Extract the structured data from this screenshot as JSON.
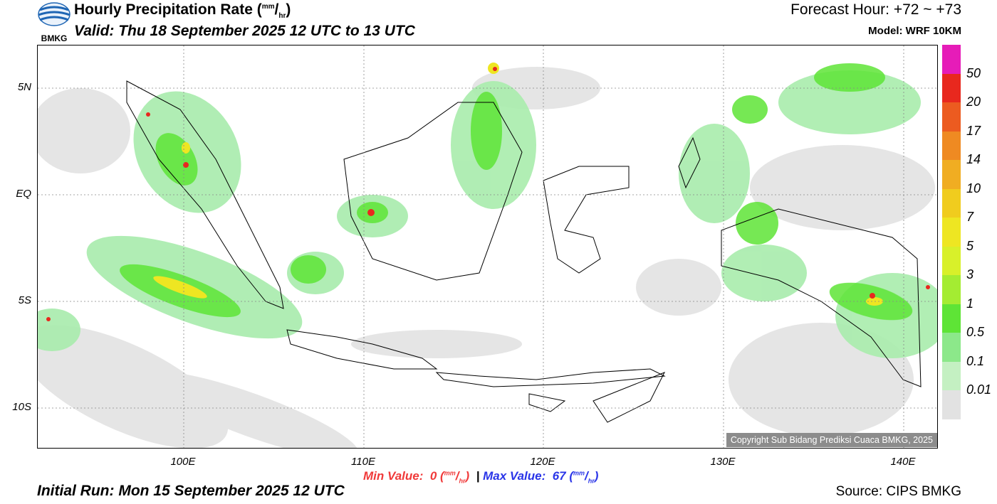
{
  "header": {
    "title": "Hourly Precipitation Rate",
    "title_unit_top": "mm",
    "title_unit_bottom": "hr",
    "valid": "Valid: Thu 18 September 2025 12 UTC to 13 UTC",
    "forecast_hour": "Forecast Hour: +72 ~ +73",
    "model": "Model: WRF 10KM",
    "logo_text": "BMKG"
  },
  "map": {
    "lat_labels": [
      "5N",
      "EQ",
      "5S",
      "10S"
    ],
    "lon_labels": [
      "100E",
      "110E",
      "120E",
      "130E",
      "140E"
    ],
    "copyright": "Copyright Sub Bidang Prediksi Cuaca BMKG, 2025"
  },
  "footer": {
    "min_label": "Min Value:",
    "min_value": "0",
    "max_label": "Max Value:",
    "max_value": "67",
    "unit_top": "mm",
    "unit_bottom": "hr",
    "separator": "|",
    "initial_run": "Initial Run: Mon 15 September 2025 12 UTC",
    "source": "Source: CIPS BMKG"
  },
  "colorbar": {
    "labels": [
      "50",
      "20",
      "17",
      "14",
      "10",
      "7",
      "5",
      "3",
      "1",
      "0.5",
      "0.1",
      "0.01"
    ],
    "colors": [
      "#e61cb8",
      "#e8281e",
      "#ec5b20",
      "#ef8a22",
      "#f0ad22",
      "#f0cc1e",
      "#eee622",
      "#d8f02a",
      "#a4ec32",
      "#5ee436",
      "#8ce88a",
      "#c4f0c2",
      "#e2e2e2"
    ]
  }
}
